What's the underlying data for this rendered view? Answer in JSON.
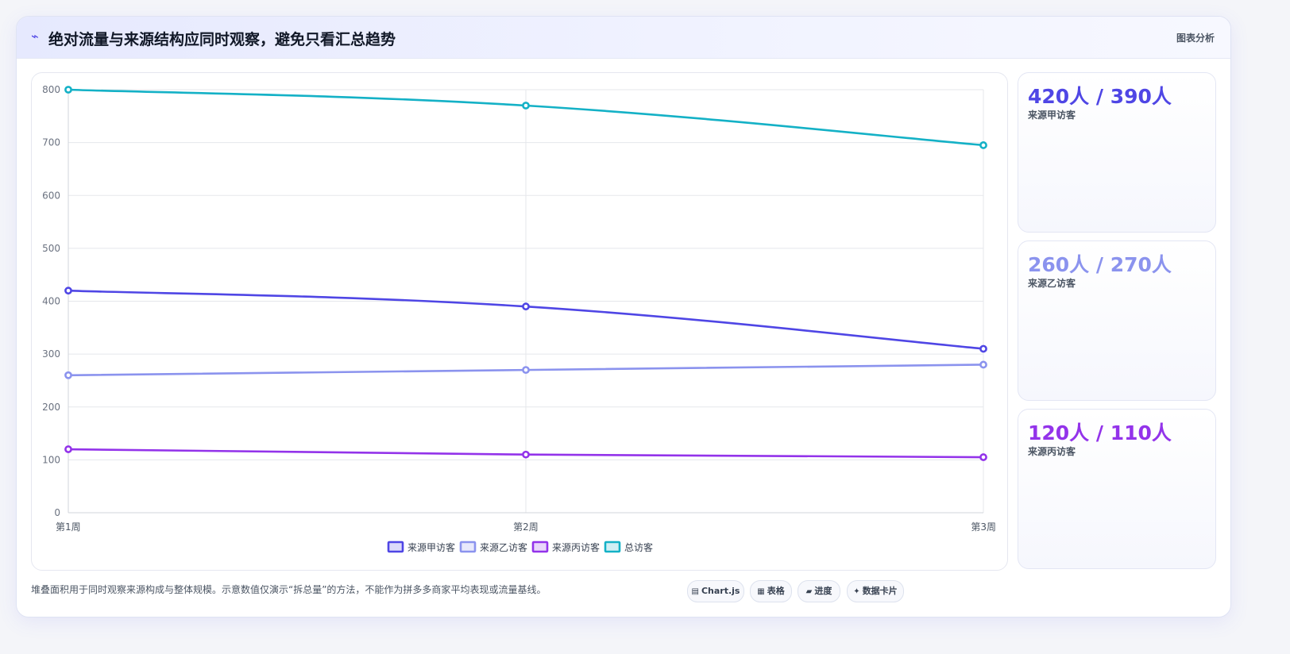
{
  "header": {
    "icon": "chart-bolt-icon",
    "title": "绝对流量与来源结构应同时观察，避免只看汇总趋势",
    "tag": "图表分析"
  },
  "chart_data": {
    "type": "line",
    "categories": [
      "第1周",
      "第2周",
      "第3周"
    ],
    "ylim": [
      0,
      800
    ],
    "yticks": [
      0,
      100,
      200,
      300,
      400,
      500,
      600,
      700,
      800
    ],
    "grid": true,
    "legend_position": "bottom",
    "series": [
      {
        "name": "来源甲访客",
        "values": [
          420,
          390,
          310
        ],
        "color": "#4f46e5"
      },
      {
        "name": "来源乙访客",
        "values": [
          260,
          270,
          280
        ],
        "color": "#8b93ee"
      },
      {
        "name": "来源丙访客",
        "values": [
          120,
          110,
          105
        ],
        "color": "#9333ea"
      },
      {
        "name": "总访客",
        "values": [
          800,
          770,
          695
        ],
        "color": "#14b1c6"
      }
    ]
  },
  "stats": [
    {
      "value": "420人 / 390人",
      "label": "来源甲访客",
      "color": "#4f46e5"
    },
    {
      "value": "260人 / 270人",
      "label": "来源乙访客",
      "color": "#8b93ee"
    },
    {
      "value": "120人 / 110人",
      "label": "来源丙访客",
      "color": "#9333ea"
    }
  ],
  "footnote": "堆叠面积用于同时观察来源构成与整体规模。示意数值仅演示“拆总量”的方法，不能作为拼多多商家平均表现或流量基线。",
  "pills": [
    {
      "icon": "chart-icon",
      "glyph": "▤",
      "label": "Chart.js"
    },
    {
      "icon": "table-icon",
      "glyph": "▦",
      "label": "表格"
    },
    {
      "icon": "progress-icon",
      "glyph": "▰",
      "label": "进度"
    },
    {
      "icon": "sparkle-icon",
      "glyph": "✦",
      "label": "数据卡片"
    }
  ]
}
